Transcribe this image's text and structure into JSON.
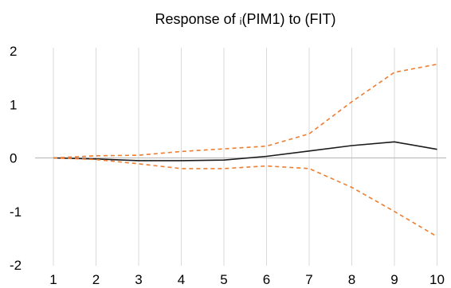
{
  "chart_data": {
    "type": "line",
    "title": "Response of     ᵢ(PIM1) to       (FIT)",
    "xlabel": "",
    "ylabel": "",
    "x": [
      1,
      2,
      3,
      4,
      5,
      6,
      7,
      8,
      9,
      10
    ],
    "ylim": [
      -2,
      2
    ],
    "yticks": [
      -2,
      -1,
      0,
      1,
      2
    ],
    "grid": "vertical",
    "legend": "none",
    "series": [
      {
        "key": "response",
        "style": "solid",
        "color": "#1a1a1a",
        "values": [
          0.0,
          -0.02,
          -0.05,
          -0.05,
          -0.04,
          0.03,
          0.13,
          0.23,
          0.3,
          0.16
        ]
      },
      {
        "key": "upper",
        "style": "dashed",
        "color": "#ed7d31",
        "values": [
          0.0,
          0.04,
          0.05,
          0.12,
          0.17,
          0.22,
          0.45,
          1.05,
          1.6,
          1.75
        ]
      },
      {
        "key": "lower",
        "style": "dashed",
        "color": "#ed7d31",
        "values": [
          0.0,
          -0.03,
          -0.11,
          -0.2,
          -0.2,
          -0.15,
          -0.2,
          -0.55,
          -1.0,
          -1.47
        ]
      }
    ],
    "colors": {
      "grid": "#d9d9d9",
      "zero_line": "#bfbfbf"
    }
  }
}
